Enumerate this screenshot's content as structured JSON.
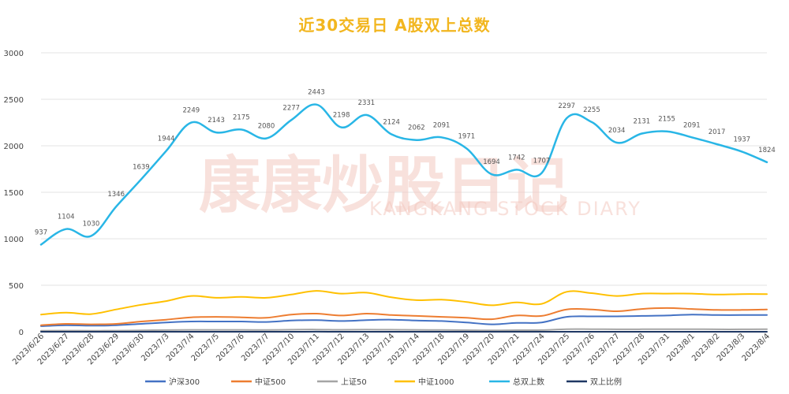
{
  "chart_data": {
    "type": "line",
    "title": "近30交易日 A股双上总数",
    "categories": [
      "2023/6/26",
      "2023/6/27",
      "2023/6/28",
      "2023/6/29",
      "2023/6/30",
      "2023/7/3",
      "2023/7/4",
      "2023/7/5",
      "2023/7/6",
      "2023/7/7",
      "2023/7/10",
      "2023/7/11",
      "2023/7/12",
      "2023/7/13",
      "2023/7/14",
      "2023/7/14",
      "2023/7/18",
      "2023/7/19",
      "2023/7/20",
      "2023/7/21",
      "2023/7/24",
      "2023/7/25",
      "2023/7/26",
      "2023/7/27",
      "2023/7/28",
      "2023/7/31",
      "2023/8/1",
      "2023/8/2",
      "2023/8/3",
      "2023/8/4"
    ],
    "ylim": [
      0,
      3000
    ],
    "yticks": [
      "0",
      "500",
      "1000",
      "1500",
      "2000",
      "2500",
      "3000"
    ],
    "grid": true,
    "legend_position": "bottom",
    "series": [
      {
        "name": "沪深300",
        "color": "#4472c4",
        "values": [
          60,
          70,
          65,
          70,
          85,
          100,
          110,
          110,
          110,
          105,
          120,
          125,
          115,
          125,
          130,
          120,
          115,
          100,
          80,
          95,
          100,
          160,
          165,
          165,
          170,
          175,
          185,
          180,
          180,
          180
        ]
      },
      {
        "name": "中证500",
        "color": "#ed7d31",
        "values": [
          70,
          85,
          80,
          85,
          110,
          130,
          155,
          160,
          155,
          150,
          185,
          195,
          175,
          195,
          180,
          170,
          160,
          150,
          135,
          175,
          170,
          240,
          240,
          220,
          245,
          255,
          245,
          235,
          235,
          240
        ]
      },
      {
        "name": "上证50",
        "color": "#a5a5a5",
        "values": [
          10,
          12,
          11,
          12,
          15,
          18,
          20,
          20,
          20,
          19,
          22,
          24,
          21,
          23,
          22,
          20,
          19,
          17,
          14,
          17,
          18,
          28,
          28,
          26,
          27,
          28,
          28,
          26,
          26,
          27
        ]
      },
      {
        "name": "中证1000",
        "color": "#ffc000",
        "values": [
          185,
          205,
          190,
          240,
          290,
          330,
          385,
          365,
          375,
          365,
          400,
          440,
          410,
          420,
          370,
          340,
          345,
          320,
          285,
          315,
          300,
          430,
          415,
          385,
          410,
          410,
          410,
          400,
          405,
          405
        ]
      },
      {
        "name": "总双上数",
        "color": "#29b6e6",
        "labeled": true,
        "values": [
          937,
          1104,
          1030,
          1346,
          1639,
          1944,
          2249,
          2143,
          2175,
          2080,
          2277,
          2443,
          2198,
          2331,
          2124,
          2062,
          2091,
          1971,
          1694,
          1742,
          1707,
          2297,
          2255,
          2034,
          2131,
          2155,
          2091,
          2017,
          1937,
          1824
        ]
      },
      {
        "name": "双上比例",
        "color": "#1f3864",
        "values": [
          0.2,
          0.2,
          0.2,
          0.3,
          0.3,
          0.4,
          0.4,
          0.4,
          0.4,
          0.4,
          0.4,
          0.5,
          0.4,
          0.4,
          0.4,
          0.4,
          0.4,
          0.4,
          0.3,
          0.3,
          0.3,
          0.4,
          0.4,
          0.4,
          0.4,
          0.4,
          0.4,
          0.4,
          0.4,
          0.4
        ]
      }
    ]
  },
  "watermark": {
    "big": "康康炒股日记",
    "small": "KANGKANG STOCK DIARY"
  }
}
